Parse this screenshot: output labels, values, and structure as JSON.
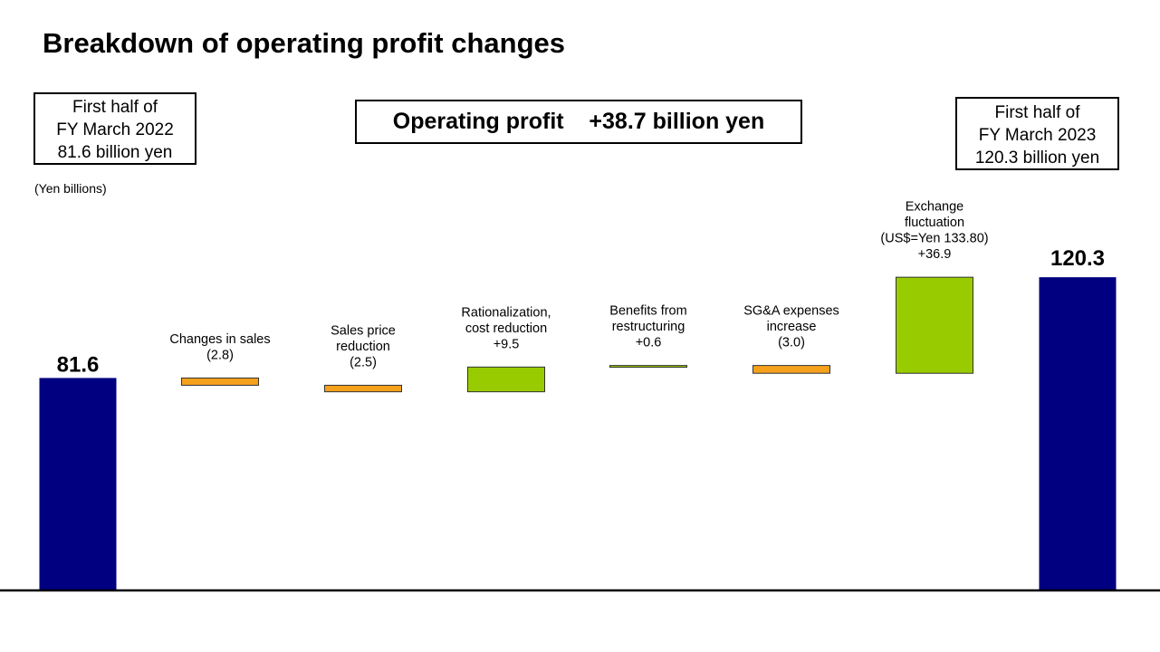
{
  "title": "Breakdown of operating profit changes",
  "left_box": {
    "lines": [
      "First half of",
      "FY March 2022",
      "81.6 billion  yen"
    ]
  },
  "right_box": {
    "lines": [
      "First half of",
      "FY March 2023",
      "120.3 billion  yen"
    ]
  },
  "center_box": {
    "text": "Operating profit    +38.7 billion yen"
  },
  "unit_label": "(Yen billions)",
  "colors": {
    "total": "#000080",
    "increase": "#99CC00",
    "decrease": "#F5A11C",
    "border": "#000000"
  },
  "chart_data": {
    "type": "bar",
    "subtype": "waterfall",
    "unit": "(Yen billions)",
    "start": {
      "value": 81.6,
      "label": "81.6"
    },
    "end": {
      "value": 120.3,
      "label": "120.3"
    },
    "steps": [
      {
        "label_lines": [
          "Changes in sales",
          "(2.8)"
        ],
        "value": -2.8
      },
      {
        "label_lines": [
          "Sales price",
          "reduction",
          "(2.5)"
        ],
        "value": -2.5
      },
      {
        "label_lines": [
          "Rationalization,",
          "cost reduction",
          "+9.5"
        ],
        "value": 9.5
      },
      {
        "label_lines": [
          "Benefits from",
          "restructuring",
          "+0.6"
        ],
        "value": 0.6
      },
      {
        "label_lines": [
          "SG&A expenses",
          "increase",
          "(3.0)"
        ],
        "value": -3.0
      },
      {
        "label_lines": [
          "Exchange",
          "fluctuation",
          "(US$=Yen 133.80)",
          "+36.9"
        ],
        "value": 36.9
      }
    ],
    "ylim": [
      0,
      120.3
    ],
    "grid": false,
    "legend": "none"
  }
}
